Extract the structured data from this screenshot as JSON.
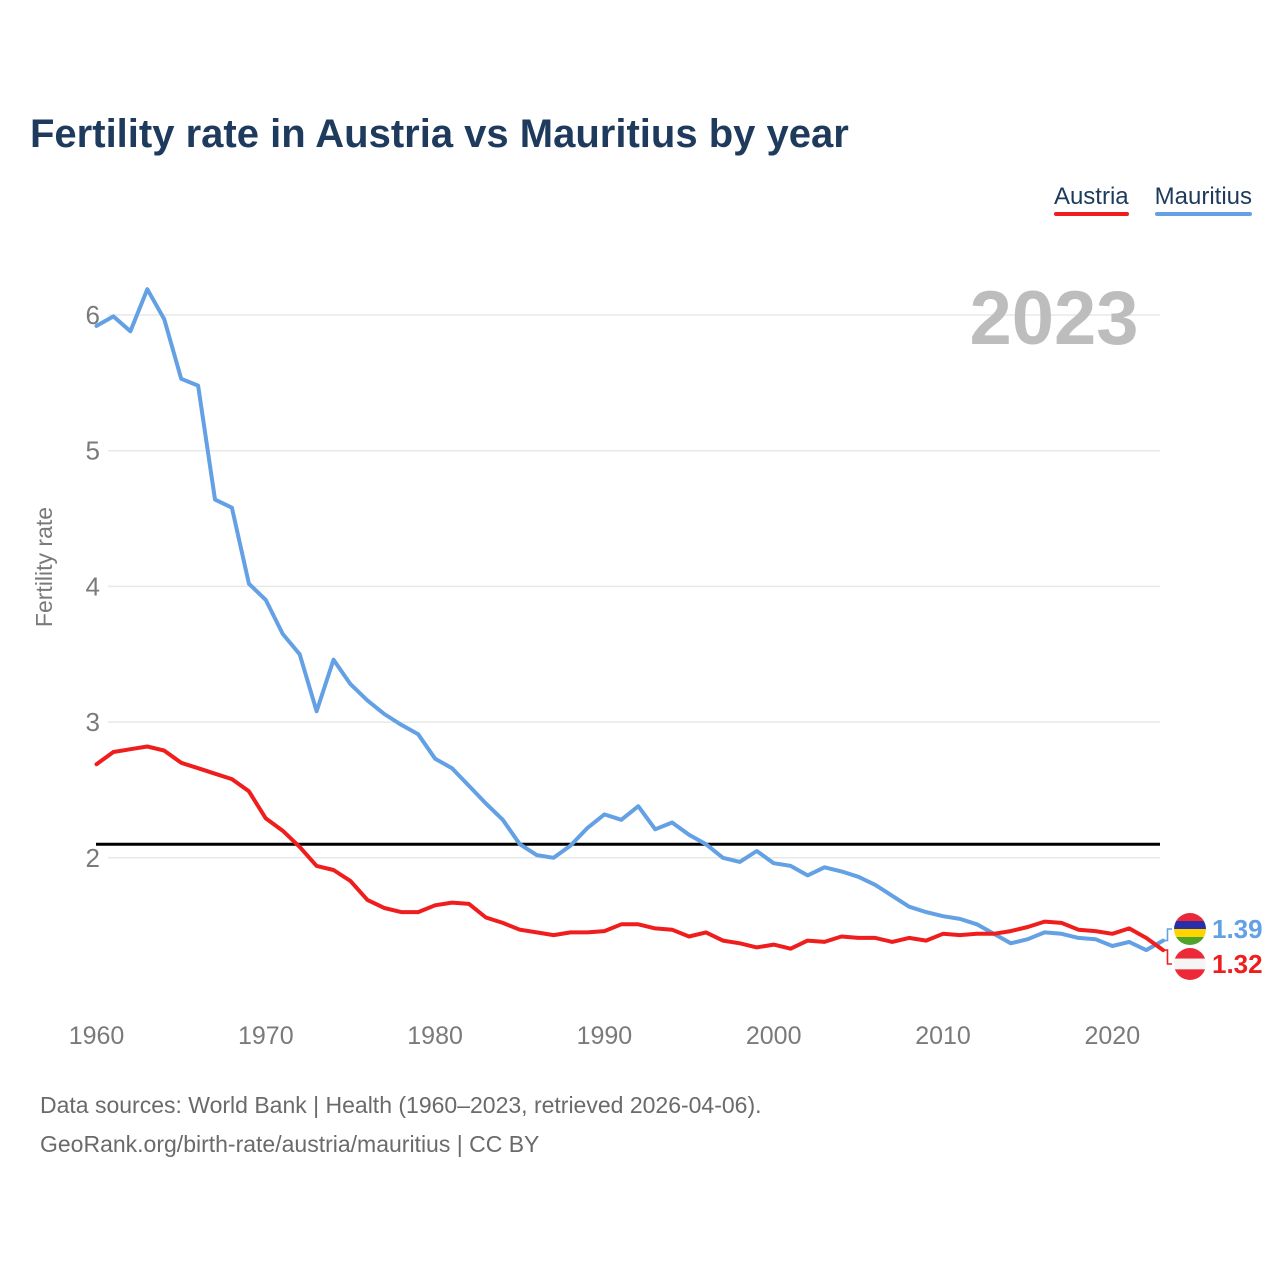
{
  "header": {
    "title": "Fertility rate in Austria vs Mauritius by year"
  },
  "legend": {
    "items": [
      {
        "label": "Austria"
      },
      {
        "label": "Mauritius"
      }
    ]
  },
  "chart_data": {
    "type": "line",
    "title": "Fertility rate in Austria vs Mauritius by year",
    "ylabel": "Fertility rate",
    "watermark_year": "2023",
    "grid": "horizontal",
    "legend_position": "top-right",
    "x_ticks": [
      1960,
      1970,
      1980,
      1990,
      2000,
      2010,
      2020
    ],
    "y_ticks": [
      2,
      3,
      4,
      5,
      6
    ],
    "x_range": [
      1960,
      2023
    ],
    "ylim": [
      1.15,
      6.45
    ],
    "reference_line": {
      "value": 2.1,
      "color": "#000000"
    },
    "years": [
      1960,
      1961,
      1962,
      1963,
      1964,
      1965,
      1966,
      1967,
      1968,
      1969,
      1970,
      1971,
      1972,
      1973,
      1974,
      1975,
      1976,
      1977,
      1978,
      1979,
      1980,
      1981,
      1982,
      1983,
      1984,
      1985,
      1986,
      1987,
      1988,
      1989,
      1990,
      1991,
      1992,
      1993,
      1994,
      1995,
      1996,
      1997,
      1998,
      1999,
      2000,
      2001,
      2002,
      2003,
      2004,
      2005,
      2006,
      2007,
      2008,
      2009,
      2010,
      2011,
      2012,
      2013,
      2014,
      2015,
      2016,
      2017,
      2018,
      2019,
      2020,
      2021,
      2022,
      2023
    ],
    "series": [
      {
        "name": "Austria",
        "color": "#F01D1D",
        "flag": "austria",
        "end_label": "1.32",
        "values": [
          2.69,
          2.78,
          2.8,
          2.82,
          2.79,
          2.7,
          2.66,
          2.62,
          2.58,
          2.49,
          2.29,
          2.2,
          2.08,
          1.94,
          1.91,
          1.83,
          1.69,
          1.63,
          1.6,
          1.6,
          1.65,
          1.67,
          1.66,
          1.56,
          1.52,
          1.47,
          1.45,
          1.43,
          1.45,
          1.45,
          1.46,
          1.51,
          1.51,
          1.48,
          1.47,
          1.42,
          1.45,
          1.39,
          1.37,
          1.34,
          1.36,
          1.33,
          1.39,
          1.38,
          1.42,
          1.41,
          1.41,
          1.38,
          1.41,
          1.39,
          1.44,
          1.43,
          1.44,
          1.44,
          1.46,
          1.49,
          1.53,
          1.52,
          1.47,
          1.46,
          1.44,
          1.48,
          1.41,
          1.32
        ]
      },
      {
        "name": "Mauritius",
        "color": "#63A0E4",
        "flag": "mauritius",
        "end_label": "1.39",
        "values": [
          5.92,
          5.99,
          5.88,
          6.19,
          5.97,
          5.53,
          5.48,
          4.64,
          4.58,
          4.02,
          3.9,
          3.65,
          3.5,
          3.08,
          3.46,
          3.28,
          3.16,
          3.06,
          2.98,
          2.91,
          2.73,
          2.66,
          2.53,
          2.4,
          2.28,
          2.1,
          2.02,
          2.0,
          2.09,
          2.22,
          2.32,
          2.28,
          2.38,
          2.21,
          2.26,
          2.17,
          2.1,
          2.0,
          1.97,
          2.05,
          1.96,
          1.94,
          1.87,
          1.93,
          1.9,
          1.86,
          1.8,
          1.72,
          1.64,
          1.6,
          1.57,
          1.55,
          1.51,
          1.44,
          1.37,
          1.4,
          1.45,
          1.44,
          1.41,
          1.4,
          1.35,
          1.38,
          1.32,
          1.39
        ]
      }
    ],
    "flag_colors": {
      "austria": [
        "#ED2939",
        "#F5F5F5",
        "#ED2939"
      ],
      "mauritius": [
        "#EA2839",
        "#2A2FA8",
        "#FFD500",
        "#4FA32A"
      ]
    }
  },
  "footer": {
    "line1": "Data sources: World Bank | Health (1960–2023, retrieved 2026-04-06).",
    "line2": "GeoRank.org/birth-rate/austria/mauritius | CC BY"
  }
}
